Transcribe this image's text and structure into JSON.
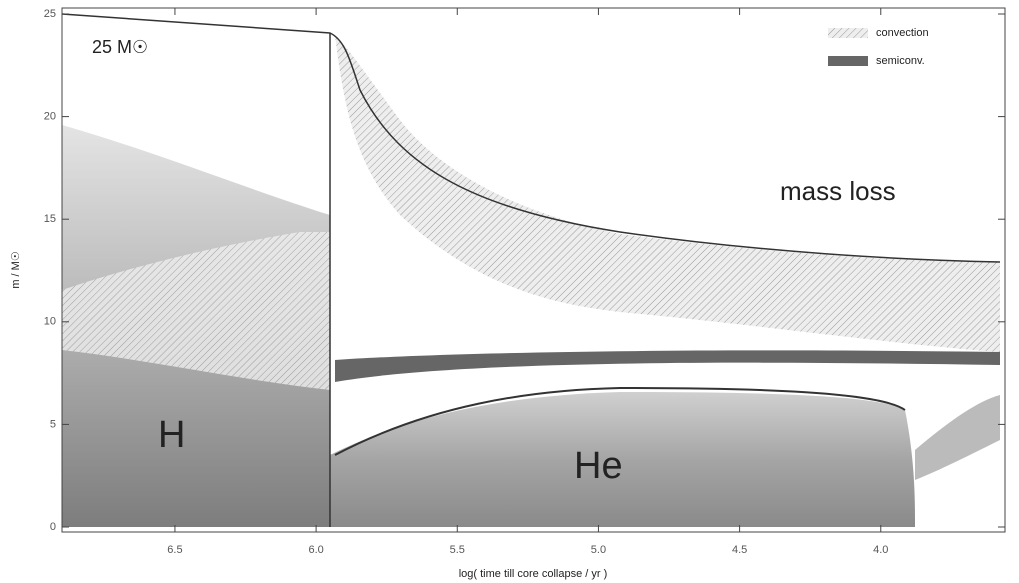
{
  "chart_data": {
    "type": "kippenhahn",
    "x_label": "log( time till core collapse / yr )",
    "y_label": "m / M☉",
    "xlim": [
      6.9,
      3.56
    ],
    "xticks": [
      6.5,
      6.0,
      5.5,
      5.0,
      4.5,
      4.0
    ],
    "ylim": [
      0,
      25
    ],
    "yticks": [
      0,
      5,
      10,
      15,
      20,
      25
    ],
    "legend": [
      "convection",
      "semiconv."
    ],
    "annotations": [
      "25 M☉",
      "mass loss",
      "H",
      "He"
    ]
  }
}
